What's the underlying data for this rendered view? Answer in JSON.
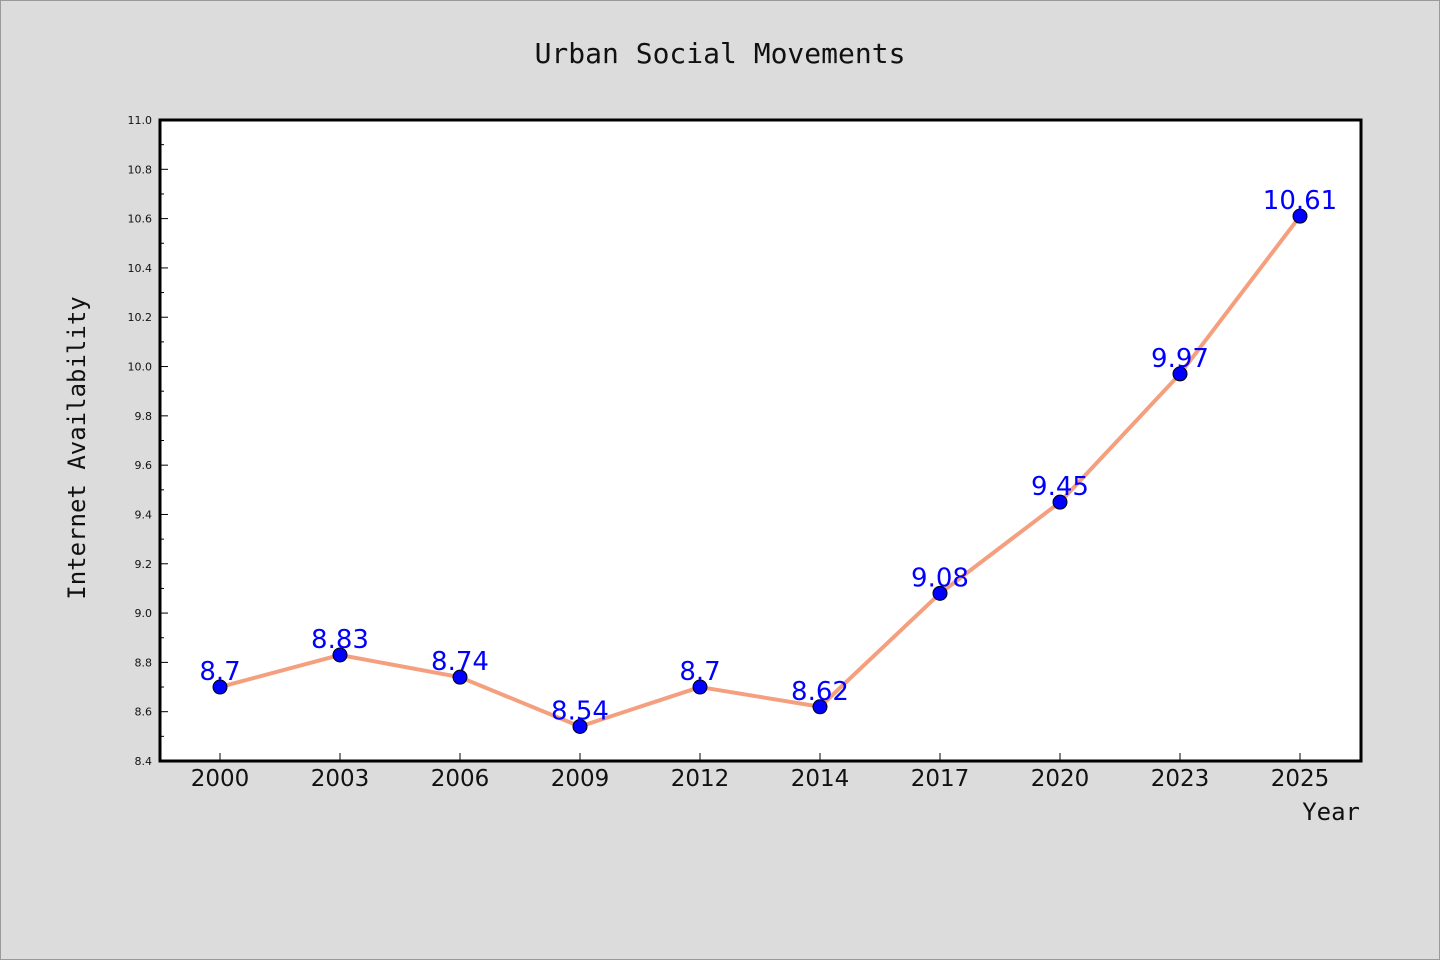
{
  "chart_data": {
    "type": "line",
    "title": "Urban Social Movements",
    "xlabel": "Year",
    "ylabel": "Internet Availability",
    "categories": [
      "2000",
      "2003",
      "2006",
      "2009",
      "2012",
      "2014",
      "2017",
      "2020",
      "2023",
      "2025"
    ],
    "series": [
      {
        "values": [
          8.7,
          8.83,
          8.74,
          8.54,
          8.7,
          8.62,
          9.08,
          9.45,
          9.97,
          10.61
        ],
        "data_labels": [
          "8.7",
          "8.83",
          "8.74",
          "8.54",
          "8.7",
          "8.62",
          "9.08",
          "9.45",
          "9.97",
          "10.61"
        ]
      }
    ],
    "ylim": [
      8.4,
      11.0
    ],
    "yticks": [
      "8.4",
      "8.6",
      "8.8",
      "9.0",
      "9.2",
      "9.4",
      "9.6",
      "9.8",
      "10.0",
      "10.2",
      "10.4",
      "10.6",
      "10.8",
      "11.0"
    ],
    "grid": false,
    "legend": "none",
    "colors": {
      "line": "#f4a07f",
      "marker": "#0000ff",
      "data_label": "#0000ff",
      "plot_background": "#ffffff",
      "figure_background": "#dcdcdc"
    }
  }
}
